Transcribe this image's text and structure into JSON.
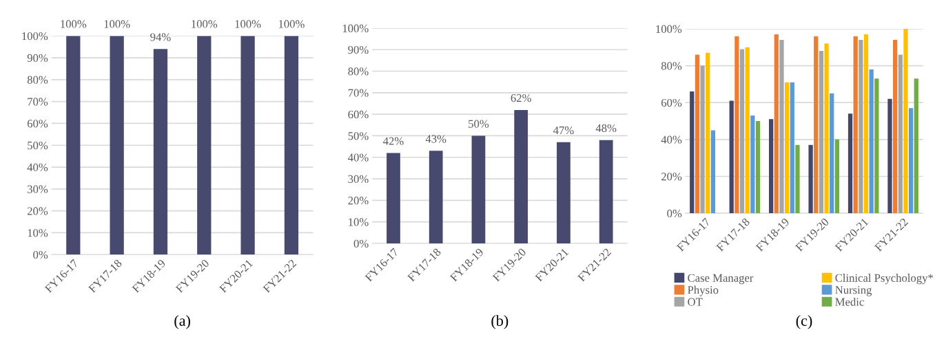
{
  "chart_data": [
    {
      "type": "bar",
      "categories": [
        "FY16-17",
        "FY17-18",
        "FY18-19",
        "FY19-20",
        "FY20-21",
        "FY21-22"
      ],
      "values": [
        100,
        100,
        94,
        100,
        100,
        100
      ],
      "value_labels": [
        "100%",
        "100%",
        "94%",
        "100%",
        "100%",
        "100%"
      ],
      "color": "#474a6e",
      "ylim": [
        0,
        100
      ],
      "yticks": [
        {
          "value": 0,
          "label": "0%"
        },
        {
          "value": 10,
          "label": "10%"
        },
        {
          "value": 20,
          "label": "20%"
        },
        {
          "value": 30,
          "label": "30%"
        },
        {
          "value": 40,
          "label": "40%"
        },
        {
          "value": 50,
          "label": "50%"
        },
        {
          "value": 60,
          "label": "60%"
        },
        {
          "value": 70,
          "label": "70%"
        },
        {
          "value": 80,
          "label": "80%"
        },
        {
          "value": 90,
          "label": "90%"
        },
        {
          "value": 100,
          "label": "100%"
        }
      ],
      "grid": "y",
      "legend": false,
      "annotations": [
        "(a)"
      ]
    },
    {
      "type": "bar",
      "categories": [
        "FY16-17",
        "FY17-18",
        "FY18-19",
        "FY19-20",
        "FY20-21",
        "FY21-22"
      ],
      "values": [
        42,
        43,
        50,
        62,
        47,
        48
      ],
      "value_labels": [
        "42%",
        "43%",
        "50%",
        "62%",
        "47%",
        "48%"
      ],
      "color": "#474a6e",
      "ylim": [
        0,
        100
      ],
      "yticks": [
        {
          "value": 0,
          "label": "0%"
        },
        {
          "value": 10,
          "label": "10%"
        },
        {
          "value": 20,
          "label": "20%"
        },
        {
          "value": 30,
          "label": "30%"
        },
        {
          "value": 40,
          "label": "40%"
        },
        {
          "value": 50,
          "label": "50%"
        },
        {
          "value": 60,
          "label": "60%"
        },
        {
          "value": 70,
          "label": "70%"
        },
        {
          "value": 80,
          "label": "80%"
        },
        {
          "value": 90,
          "label": "90%"
        },
        {
          "value": 100,
          "label": "100%"
        }
      ],
      "grid": "y",
      "legend": false,
      "annotations": [
        "(b)"
      ]
    },
    {
      "type": "bar",
      "categories": [
        "FY16-17",
        "FY17-18",
        "FY18-19",
        "FY19-20",
        "FY20-21",
        "FY21-22"
      ],
      "series": [
        {
          "name": "Case Manager",
          "color": "#44466b",
          "values": [
            66,
            61,
            51,
            37,
            54,
            62
          ]
        },
        {
          "name": "Physio",
          "color": "#ed7d31",
          "values": [
            86,
            96,
            97,
            96,
            96,
            94
          ]
        },
        {
          "name": "OT",
          "color": "#a5a5a5",
          "values": [
            80,
            89,
            94,
            88,
            94,
            86
          ]
        },
        {
          "name": "Clinical Psychology*",
          "color": "#ffc000",
          "values": [
            87,
            90,
            71,
            92,
            97,
            100
          ]
        },
        {
          "name": "Nursing",
          "color": "#5b9bd5",
          "values": [
            45,
            53,
            71,
            65,
            78,
            57
          ]
        },
        {
          "name": "Medic",
          "color": "#70ad47",
          "values": [
            null,
            50,
            37,
            40,
            73,
            73
          ]
        }
      ],
      "ylim": [
        0,
        100
      ],
      "yticks": [
        {
          "value": 0,
          "label": "0%"
        },
        {
          "value": 20,
          "label": "20%"
        },
        {
          "value": 40,
          "label": "40%"
        },
        {
          "value": 60,
          "label": "60%"
        },
        {
          "value": 80,
          "label": "80%"
        },
        {
          "value": 100,
          "label": "100%"
        }
      ],
      "grid": "y",
      "legend": "bottom",
      "annotations": [
        "(c)"
      ]
    }
  ]
}
